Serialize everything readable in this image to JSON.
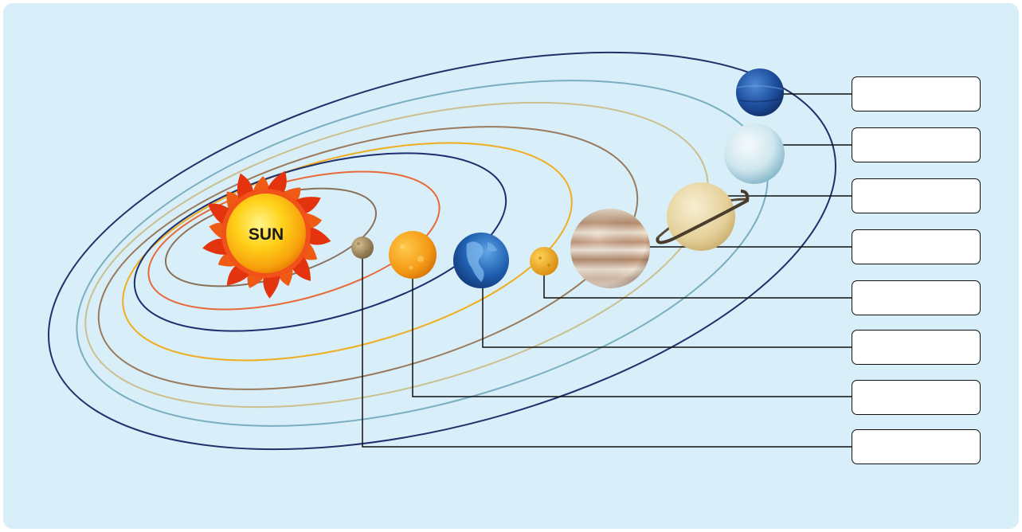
{
  "diagram": {
    "sun_label": "SUN",
    "orbit_colors": {
      "mercury": "#8a7058",
      "venus": "#e8693a",
      "earth": "#1c2f6e",
      "mars": "#efad1f",
      "jupiter": "#9b7a5c",
      "saturn": "#cbbf8e",
      "uranus": "#7aaec0",
      "neptune": "#232f6b"
    },
    "planets": [
      {
        "id": "mercury",
        "icon": "mercury-icon",
        "color": "#a68a5e"
      },
      {
        "id": "venus",
        "icon": "venus-icon",
        "color": "#f29a1c"
      },
      {
        "id": "earth",
        "icon": "earth-icon",
        "color": "#1f5fb0"
      },
      {
        "id": "mars",
        "icon": "mars-icon",
        "color": "#eea21f"
      },
      {
        "id": "jupiter",
        "icon": "jupiter-icon",
        "color": "#c8a488"
      },
      {
        "id": "saturn",
        "icon": "saturn-icon",
        "color": "#ead9a8"
      },
      {
        "id": "uranus",
        "icon": "uranus-icon",
        "color": "#cfe6ee"
      },
      {
        "id": "neptune",
        "icon": "neptune-icon",
        "color": "#1e4f9e"
      }
    ],
    "label_boxes": [
      {
        "planet": "neptune",
        "text": ""
      },
      {
        "planet": "uranus",
        "text": ""
      },
      {
        "planet": "saturn",
        "text": ""
      },
      {
        "planet": "jupiter",
        "text": ""
      },
      {
        "planet": "mars",
        "text": ""
      },
      {
        "planet": "earth",
        "text": ""
      },
      {
        "planet": "venus",
        "text": ""
      },
      {
        "planet": "mercury",
        "text": ""
      }
    ]
  }
}
